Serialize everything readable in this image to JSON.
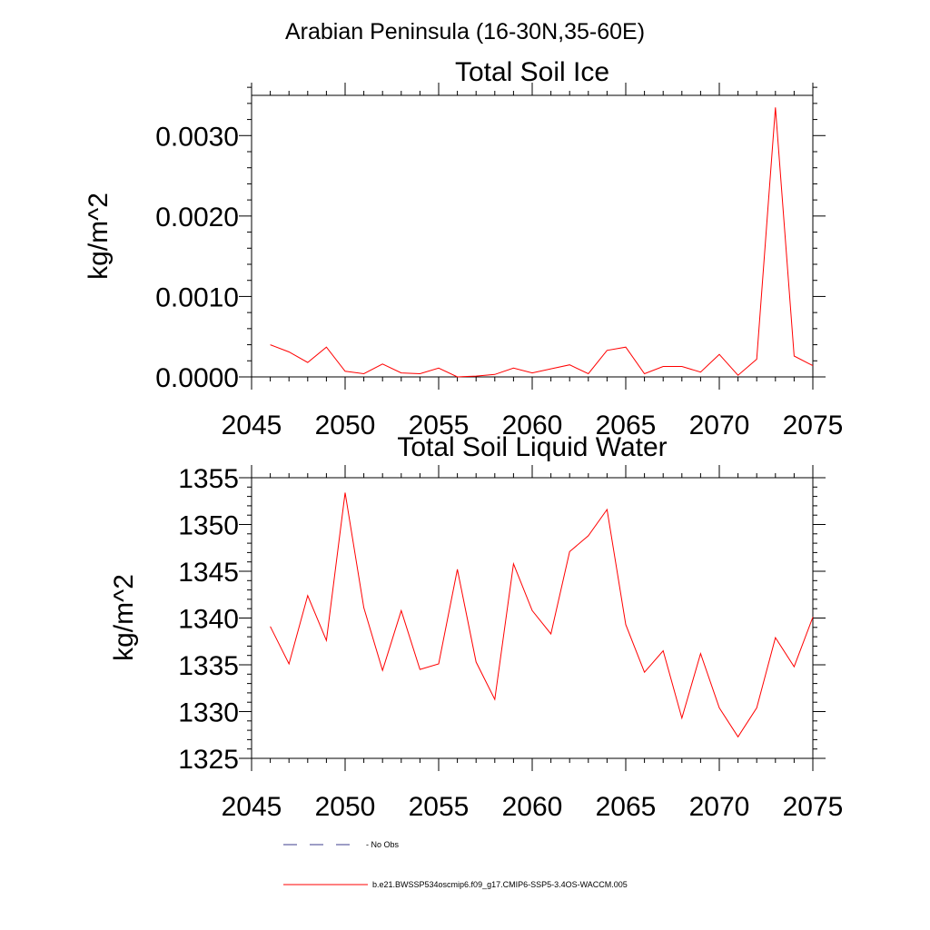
{
  "main_title": "Arabian Peninsula (16-30N,35-60E)",
  "legend": [
    {
      "label": "- No Obs",
      "style": "dashed",
      "color": "#3c3c8c"
    },
    {
      "label": "b.e21.BWSSP534oscmip6.f09_g17.CMIP6-SSP5-3.4OS-WACCM.005",
      "style": "solid",
      "color": "#ff0000"
    }
  ],
  "chart_data": [
    {
      "type": "line",
      "title": "Total Soil Ice",
      "xlabel": "",
      "ylabel": "kg/m^2",
      "xlim": [
        2045,
        2075
      ],
      "ylim": [
        0,
        0.0035
      ],
      "x_ticks": [
        2045,
        2050,
        2055,
        2060,
        2065,
        2070,
        2075
      ],
      "x_tick_labels": [
        "2045",
        "2050",
        "2055",
        "2060",
        "2065",
        "2070",
        "2075"
      ],
      "y_ticks": [
        0,
        0.001,
        0.002,
        0.003
      ],
      "y_tick_labels": [
        "0.0000",
        "0.0010",
        "0.0020",
        "0.0030"
      ],
      "y_minor_step": 0.0002,
      "series": [
        {
          "name": "b.e21.BWSSP534oscmip6.f09_g17.CMIP6-SSP5-3.4OS-WACCM.005",
          "color": "#ff0000",
          "x": [
            2046,
            2047,
            2048,
            2049,
            2050,
            2051,
            2052,
            2053,
            2054,
            2055,
            2056,
            2057,
            2058,
            2059,
            2060,
            2061,
            2062,
            2063,
            2064,
            2065,
            2066,
            2067,
            2068,
            2069,
            2070,
            2071,
            2072,
            2073,
            2074,
            2075
          ],
          "values": [
            0.0004,
            0.00031,
            0.00018,
            0.00037,
            7e-05,
            4e-05,
            0.00016,
            5e-05,
            4e-05,
            0.00011,
            0.0,
            1e-05,
            3e-05,
            0.00011,
            5e-05,
            0.0001,
            0.00015,
            4e-05,
            0.00033,
            0.00037,
            4e-05,
            0.00013,
            0.00013,
            6e-05,
            0.00028,
            2e-05,
            0.00022,
            0.00335,
            0.00026,
            0.00014
          ]
        }
      ]
    },
    {
      "type": "line",
      "title": "Total Soil Liquid Water",
      "xlabel": "",
      "ylabel": "kg/m^2",
      "xlim": [
        2045,
        2075
      ],
      "ylim": [
        1325,
        1355
      ],
      "x_ticks": [
        2045,
        2050,
        2055,
        2060,
        2065,
        2070,
        2075
      ],
      "x_tick_labels": [
        "2045",
        "2050",
        "2055",
        "2060",
        "2065",
        "2070",
        "2075"
      ],
      "y_ticks": [
        1325,
        1330,
        1335,
        1340,
        1345,
        1350,
        1355
      ],
      "y_tick_labels": [
        "1325",
        "1330",
        "1335",
        "1340",
        "1345",
        "1350",
        "1355"
      ],
      "y_minor_step": 1,
      "series": [
        {
          "name": "b.e21.BWSSP534oscmip6.f09_g17.CMIP6-SSP5-3.4OS-WACCM.005",
          "color": "#ff0000",
          "x": [
            2046,
            2047,
            2048,
            2049,
            2050,
            2051,
            2052,
            2053,
            2054,
            2055,
            2056,
            2057,
            2058,
            2059,
            2060,
            2061,
            2062,
            2063,
            2064,
            2065,
            2066,
            2067,
            2068,
            2069,
            2070,
            2071,
            2072,
            2073,
            2074,
            2075
          ],
          "values": [
            1339.1,
            1335.1,
            1342.4,
            1337.6,
            1353.4,
            1341.1,
            1334.4,
            1340.8,
            1334.5,
            1335.1,
            1345.2,
            1335.3,
            1331.3,
            1345.8,
            1340.8,
            1338.3,
            1347.1,
            1348.8,
            1351.6,
            1339.3,
            1334.2,
            1336.5,
            1329.3,
            1336.2,
            1330.4,
            1327.3,
            1330.4,
            1337.9,
            1334.8,
            1340.1
          ]
        }
      ]
    }
  ]
}
